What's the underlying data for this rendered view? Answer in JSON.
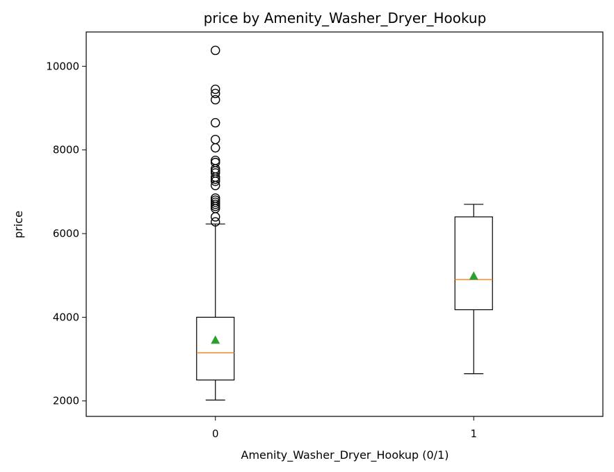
{
  "chart_data": {
    "type": "box",
    "title": "price by Amenity_Washer_Dryer_Hookup",
    "xlabel": "Amenity_Washer_Dryer_Hookup (0/1)",
    "ylabel": "price",
    "ylim": [
      1630,
      10820
    ],
    "yticks": [
      2000,
      4000,
      6000,
      8000,
      10000
    ],
    "xlim": [
      -0.5,
      1.5
    ],
    "grid": false,
    "colors": {
      "box": "#000000",
      "median": "#ff7f0e",
      "mean": "#2ca02c",
      "flier": "#000000"
    },
    "categories": [
      "0",
      "1"
    ],
    "boxes": [
      {
        "category": "0",
        "whisker_low": 2020,
        "q1": 2500,
        "median": 3150,
        "q3": 4000,
        "whisker_high": 6230,
        "mean": 3450,
        "outliers": [
          6280,
          6400,
          6600,
          6650,
          6700,
          6750,
          6800,
          6850,
          7150,
          7250,
          7300,
          7350,
          7450,
          7500,
          7550,
          7700,
          7750,
          8050,
          8250,
          8650,
          9200,
          9350,
          9450,
          10380
        ]
      },
      {
        "category": "1",
        "whisker_low": 2650,
        "q1": 4180,
        "median": 4900,
        "q3": 6400,
        "whisker_high": 6700,
        "mean": 4980,
        "outliers": []
      }
    ]
  }
}
